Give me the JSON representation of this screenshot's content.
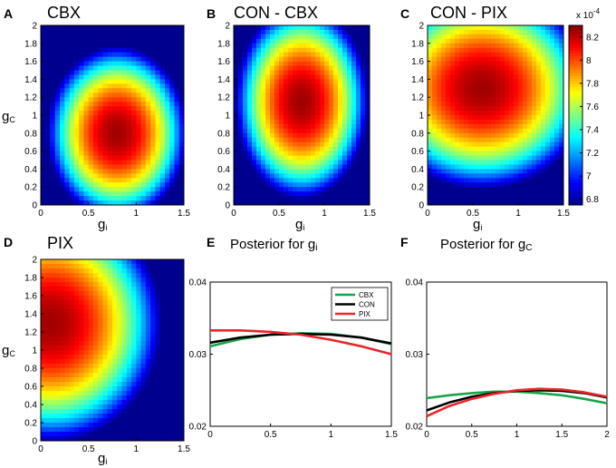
{
  "chart_data": [
    {
      "type": "heatmap",
      "panel": "A",
      "title": "CBX",
      "xlabel": "g",
      "xlabel_sub": "i",
      "ylabel": "g",
      "ylabel_sub": "C",
      "x_ticks": [
        "0",
        "0.5",
        "1",
        "1.5"
      ],
      "y_ticks": [
        "0",
        "0.2",
        "0.4",
        "0.6",
        "0.8",
        "1",
        "1.2",
        "1.4",
        "1.6",
        "1.8",
        "2"
      ],
      "xlim": [
        0,
        1.5
      ],
      "ylim": [
        0,
        2
      ],
      "peak": {
        "gi": 0.8,
        "gc": 0.8
      },
      "spread": {
        "gi": 0.95,
        "gc": 1.25
      },
      "peak_value": 8.25,
      "falloff": 1.55
    },
    {
      "type": "heatmap",
      "panel": "B",
      "title": "CON - CBX",
      "xlabel": "g",
      "xlabel_sub": "i",
      "x_ticks": [
        "0",
        "0.5",
        "1",
        "1.5"
      ],
      "y_ticks": [
        "0",
        "0.2",
        "0.4",
        "0.6",
        "0.8",
        "1",
        "1.2",
        "1.4",
        "1.6",
        "1.8",
        "2"
      ],
      "xlim": [
        0,
        1.5
      ],
      "ylim": [
        0,
        2
      ],
      "peak": {
        "gi": 0.75,
        "gc": 1.15
      },
      "spread": {
        "gi": 0.95,
        "gc": 1.4
      },
      "peak_value": 8.25,
      "falloff": 1.55
    },
    {
      "type": "heatmap",
      "panel": "C",
      "title": "CON - PIX",
      "xlabel": "g",
      "xlabel_sub": "i",
      "x_ticks": [
        "0",
        "0.5",
        "1",
        "1.5"
      ],
      "y_ticks": [
        "0",
        "0.2",
        "0.4",
        "0.6",
        "0.8",
        "1",
        "1.2",
        "1.4",
        "1.6",
        "1.8",
        "2"
      ],
      "xlim": [
        0,
        1.5
      ],
      "ylim": [
        0,
        2
      ],
      "peak": {
        "gi": 0.6,
        "gc": 1.3
      },
      "spread": {
        "gi": 1.55,
        "gc": 1.45
      },
      "peak_value": 8.25,
      "falloff": 1.55
    },
    {
      "type": "heatmap",
      "panel": "D",
      "title": "PIX",
      "xlabel": "g",
      "xlabel_sub": "i",
      "ylabel": "g",
      "ylabel_sub": "C",
      "x_ticks": [
        "0",
        "0.5",
        "1",
        "1.5"
      ],
      "y_ticks": [
        "0",
        "0.2",
        "0.4",
        "0.6",
        "0.8",
        "1",
        "1.2",
        "1.4",
        "1.6",
        "1.8",
        "2"
      ],
      "xlim": [
        0,
        1.5
      ],
      "ylim": [
        0,
        2
      ],
      "peak": {
        "gi": 0.1,
        "gc": 1.3
      },
      "spread": {
        "gi": 1.5,
        "gc": 1.7
      },
      "peak_value": 8.25,
      "falloff": 1.55
    },
    {
      "type": "line",
      "panel": "E",
      "title": "Posterior for g",
      "title_sub": "i",
      "xlabel": "",
      "ylabel": "",
      "xlim": [
        0,
        1.5
      ],
      "ylim": [
        0.02,
        0.04
      ],
      "x_ticks": [
        "0",
        "0.5",
        "1",
        "1.5"
      ],
      "y_ticks": [
        "0.02",
        "0.03",
        "0.04"
      ],
      "legend": "top-right",
      "x": [
        0,
        0.25,
        0.5,
        0.75,
        1.0,
        1.25,
        1.5
      ],
      "series": [
        {
          "name": "CBX",
          "color": "#1aa34a",
          "values": [
            0.0311,
            0.0321,
            0.0327,
            0.0329,
            0.0328,
            0.0323,
            0.0314
          ]
        },
        {
          "name": "CON",
          "color": "#000000",
          "values": [
            0.0316,
            0.0323,
            0.0327,
            0.0328,
            0.0327,
            0.0323,
            0.0315
          ]
        },
        {
          "name": "PIX",
          "color": "#e8262b",
          "values": [
            0.0333,
            0.0333,
            0.0331,
            0.0327,
            0.032,
            0.0311,
            0.03
          ]
        }
      ]
    },
    {
      "type": "line",
      "panel": "F",
      "title": "Posterior for g",
      "title_sub": "C",
      "xlabel": "",
      "ylabel": "",
      "xlim": [
        0,
        2
      ],
      "ylim": [
        0.02,
        0.04
      ],
      "x_ticks": [
        "0",
        "0.5",
        "1",
        "1.5",
        "2"
      ],
      "y_ticks": [
        "0.02",
        "0.03",
        "0.04"
      ],
      "x": [
        0,
        0.25,
        0.5,
        0.75,
        1.0,
        1.25,
        1.5,
        1.75,
        2.0
      ],
      "series": [
        {
          "name": "CBX",
          "color": "#1aa34a",
          "values": [
            0.0239,
            0.0243,
            0.0246,
            0.0248,
            0.0248,
            0.0246,
            0.0243,
            0.0238,
            0.0232
          ]
        },
        {
          "name": "CON",
          "color": "#000000",
          "values": [
            0.0222,
            0.0233,
            0.0241,
            0.0246,
            0.0249,
            0.025,
            0.0249,
            0.0246,
            0.024
          ]
        },
        {
          "name": "PIX",
          "color": "#e8262b",
          "values": [
            0.0214,
            0.0228,
            0.0238,
            0.0245,
            0.025,
            0.0252,
            0.0251,
            0.0247,
            0.0241
          ]
        }
      ]
    }
  ],
  "colorbar": {
    "exponent_label": "x 10",
    "exponent_power": "-4",
    "range": [
      6.75,
      8.3
    ],
    "ticks": [
      "6.8",
      "7",
      "7.2",
      "7.4",
      "7.6",
      "7.8",
      "8",
      "8.2"
    ],
    "colormap": [
      "#00008f",
      "#0000ff",
      "#0080ff",
      "#00ffff",
      "#80ff80",
      "#ffff00",
      "#ff8000",
      "#ff0000",
      "#800000"
    ]
  },
  "panel_letters": [
    "A",
    "B",
    "C",
    "D",
    "E",
    "F"
  ]
}
